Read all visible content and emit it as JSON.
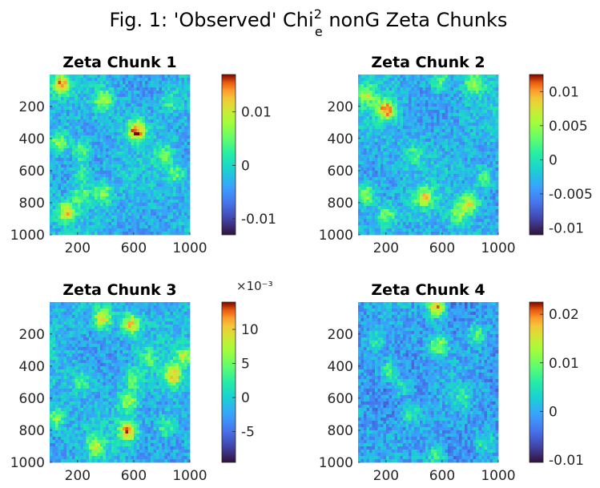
{
  "figure": {
    "title_main": "Fig. 1: 'Observed' Chi",
    "title_sup": "2",
    "title_sub": "e",
    "title_tail": " nonG Zeta Chunks"
  },
  "chart_data": [
    {
      "type": "heatmap",
      "title": "Zeta Chunk 1",
      "xlim": [
        1,
        1000
      ],
      "ylim": [
        1,
        1000
      ],
      "y_reversed": true,
      "xticks": [
        200,
        600,
        1000
      ],
      "yticks": [
        200,
        400,
        600,
        800,
        1000
      ],
      "colormap": "turbo",
      "clim": [
        -0.013,
        0.017
      ],
      "colorbar_ticks": [
        {
          "value": 0.01,
          "label": "0.01"
        },
        {
          "value": 0,
          "label": "0"
        },
        {
          "value": -0.01,
          "label": "-0.01"
        }
      ],
      "colorbar_multiplier": "",
      "hotspots": [
        {
          "x": 80,
          "y": 60,
          "v": 0.85
        },
        {
          "x": 620,
          "y": 350,
          "v": 1.0
        },
        {
          "x": 390,
          "y": 160,
          "v": 0.6
        },
        {
          "x": 230,
          "y": 480,
          "v": 0.5
        },
        {
          "x": 70,
          "y": 420,
          "v": 0.55
        },
        {
          "x": 120,
          "y": 860,
          "v": 0.8
        },
        {
          "x": 380,
          "y": 740,
          "v": 0.55
        },
        {
          "x": 230,
          "y": 760,
          "v": 0.45
        },
        {
          "x": 820,
          "y": 500,
          "v": 0.4
        },
        {
          "x": 900,
          "y": 620,
          "v": 0.4
        },
        {
          "x": 860,
          "y": 170,
          "v": 0.35
        },
        {
          "x": 230,
          "y": 620,
          "v": 0.35
        }
      ]
    },
    {
      "type": "heatmap",
      "title": "Zeta Chunk 2",
      "xlim": [
        1,
        1000
      ],
      "ylim": [
        1,
        1000
      ],
      "y_reversed": true,
      "xticks": [
        200,
        600,
        1000
      ],
      "yticks": [
        200,
        400,
        600,
        800,
        1000
      ],
      "colormap": "turbo",
      "clim": [
        -0.011,
        0.0125
      ],
      "colorbar_ticks": [
        {
          "value": 0.01,
          "label": "0.01"
        },
        {
          "value": 0.005,
          "label": "0.005"
        },
        {
          "value": 0,
          "label": "0"
        },
        {
          "value": -0.005,
          "label": "-0.005"
        },
        {
          "value": -0.01,
          "label": "-0.01"
        }
      ],
      "colorbar_multiplier": "",
      "hotspots": [
        {
          "x": 200,
          "y": 220,
          "v": 0.95
        },
        {
          "x": 470,
          "y": 770,
          "v": 0.7
        },
        {
          "x": 800,
          "y": 800,
          "v": 0.75
        },
        {
          "x": 60,
          "y": 750,
          "v": 0.6
        },
        {
          "x": 200,
          "y": 880,
          "v": 0.5
        },
        {
          "x": 830,
          "y": 50,
          "v": 0.55
        },
        {
          "x": 580,
          "y": 40,
          "v": 0.45
        },
        {
          "x": 720,
          "y": 870,
          "v": 0.5
        },
        {
          "x": 60,
          "y": 130,
          "v": 0.55
        },
        {
          "x": 900,
          "y": 650,
          "v": 0.4
        },
        {
          "x": 400,
          "y": 500,
          "v": 0.3
        }
      ]
    },
    {
      "type": "heatmap",
      "title": "Zeta Chunk 3",
      "xlim": [
        1,
        1000
      ],
      "ylim": [
        1,
        1000
      ],
      "y_reversed": true,
      "xticks": [
        200,
        600,
        1000
      ],
      "yticks": [
        200,
        400,
        600,
        800,
        1000
      ],
      "colormap": "turbo",
      "clim": [
        -0.0095,
        0.014
      ],
      "colorbar_ticks": [
        {
          "value": 0.01,
          "label": "10"
        },
        {
          "value": 0.005,
          "label": "5"
        },
        {
          "value": 0,
          "label": "0"
        },
        {
          "value": -0.005,
          "label": "-5"
        }
      ],
      "colorbar_multiplier": "×10⁻³",
      "hotspots": [
        {
          "x": 380,
          "y": 100,
          "v": 0.75
        },
        {
          "x": 580,
          "y": 140,
          "v": 0.8
        },
        {
          "x": 880,
          "y": 460,
          "v": 0.8
        },
        {
          "x": 560,
          "y": 800,
          "v": 0.9
        },
        {
          "x": 560,
          "y": 620,
          "v": 0.6
        },
        {
          "x": 960,
          "y": 340,
          "v": 0.55
        },
        {
          "x": 600,
          "y": 480,
          "v": 0.45
        },
        {
          "x": 330,
          "y": 900,
          "v": 0.55
        },
        {
          "x": 40,
          "y": 730,
          "v": 0.5
        },
        {
          "x": 830,
          "y": 780,
          "v": 0.4
        },
        {
          "x": 230,
          "y": 500,
          "v": 0.4
        },
        {
          "x": 700,
          "y": 350,
          "v": 0.35
        }
      ]
    },
    {
      "type": "heatmap",
      "title": "Zeta Chunk 4",
      "xlim": [
        1,
        1000
      ],
      "ylim": [
        1,
        1000
      ],
      "y_reversed": true,
      "xticks": [
        200,
        600,
        1000
      ],
      "yticks": [
        200,
        400,
        600,
        800,
        1000
      ],
      "colormap": "turbo",
      "clim": [
        -0.0105,
        0.0225
      ],
      "colorbar_ticks": [
        {
          "value": 0.02,
          "label": "0.02"
        },
        {
          "value": 0.01,
          "label": "0.01"
        },
        {
          "value": 0,
          "label": "0"
        },
        {
          "value": -0.01,
          "label": "-0.01"
        }
      ],
      "colorbar_multiplier": "",
      "hotspots": [
        {
          "x": 560,
          "y": 30,
          "v": 1.0
        },
        {
          "x": 580,
          "y": 270,
          "v": 0.65
        },
        {
          "x": 220,
          "y": 430,
          "v": 0.5
        },
        {
          "x": 850,
          "y": 200,
          "v": 0.45
        },
        {
          "x": 380,
          "y": 700,
          "v": 0.4
        },
        {
          "x": 320,
          "y": 530,
          "v": 0.35
        },
        {
          "x": 130,
          "y": 250,
          "v": 0.3
        },
        {
          "x": 560,
          "y": 960,
          "v": 0.45
        },
        {
          "x": 900,
          "y": 880,
          "v": 0.35
        },
        {
          "x": 750,
          "y": 600,
          "v": 0.3
        }
      ]
    }
  ]
}
